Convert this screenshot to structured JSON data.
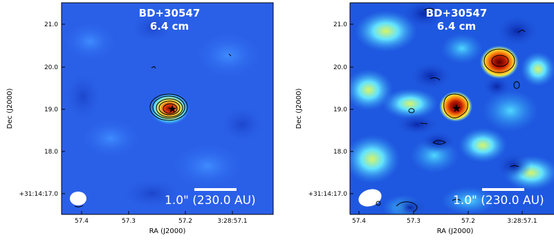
{
  "panels": [
    {
      "title_line1": "BD+30547",
      "title_line2": "6.4 cm",
      "xlabel": "RA (J2000)",
      "ylabel": "Dec (J2000)",
      "xticks": [
        "57.4",
        "57.3",
        "57.2",
        "3:28:57.1"
      ],
      "yticks": [
        "21.0",
        "20.0",
        "19.0",
        "18.0",
        "+31:14:17.0"
      ],
      "scalebar_label": "1.0\" (230.0 AU)"
    },
    {
      "title_line1": "BD+30547",
      "title_line2": "6.4 cm",
      "xlabel": "RA (J2000)",
      "ylabel": "Dec (J2000)",
      "xticks": [
        "57.4",
        "57.3",
        "57.2",
        "3:28:57.1"
      ],
      "yticks": [
        "21.0",
        "20.0",
        "19.0",
        "18.0",
        "+31:14:17.0"
      ],
      "scalebar_label": "1.0\" (230.0 AU)"
    }
  ],
  "colors": {
    "background": "#2a60e8",
    "emission_low": "#4fd9ff",
    "emission_mid": "#ffe23a",
    "emission_high": "#8a1000",
    "contour": "#000000"
  }
}
